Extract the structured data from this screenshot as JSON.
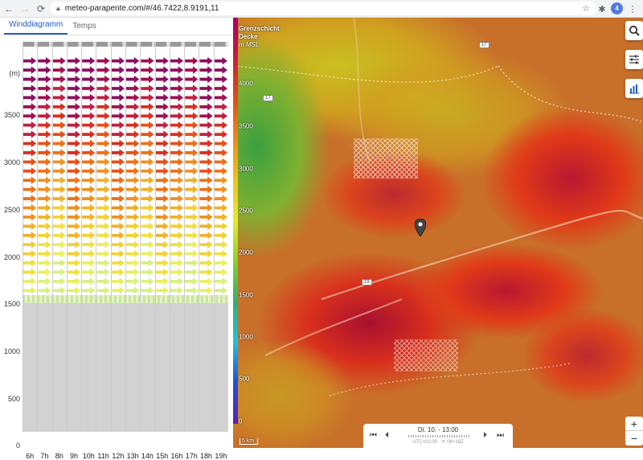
{
  "browser": {
    "url": "meteo-parapente.com/#/46.7422,8.9191,11",
    "profile_initial": "4"
  },
  "tabs": [
    {
      "label": "Winddiagramm",
      "active": true
    },
    {
      "label": "Temps",
      "active": false
    }
  ],
  "diagram": {
    "unit_label": "(m)",
    "altitude_labels": [
      "3500",
      "3000",
      "2500",
      "2000",
      "1500",
      "1000",
      "500",
      "0"
    ],
    "hours": [
      "6h",
      "7h",
      "8h",
      "9h",
      "10h",
      "11h",
      "12h",
      "13h",
      "14h",
      "15h",
      "16h",
      "17h",
      "18h",
      "19h"
    ]
  },
  "map": {
    "scale_title_line1": "Grenzschicht",
    "scale_title_line2": "Decke",
    "scale_title_line3": "m MSL",
    "scale_labels": [
      "4000",
      "3500",
      "3000",
      "2500",
      "2000",
      "1500",
      "1000",
      "500",
      "0"
    ],
    "road_labels": [
      "17",
      "17",
      "19"
    ],
    "scale_distance": "5 km",
    "time_main": "Di. 10. - 13:00",
    "time_sub": "UTC+02:00 · ⟳ 06+18Z",
    "zoom_in": "+",
    "zoom_out": "−"
  },
  "colors": {
    "accent": "#1f5fc9",
    "scale_gradient": [
      "#a8006a",
      "#c81e3a",
      "#e64a1a",
      "#f08a1a",
      "#f0c020",
      "#e8e830",
      "#8ad02a",
      "#30b070",
      "#20c0e0",
      "#2050d0",
      "#6020b0"
    ]
  }
}
